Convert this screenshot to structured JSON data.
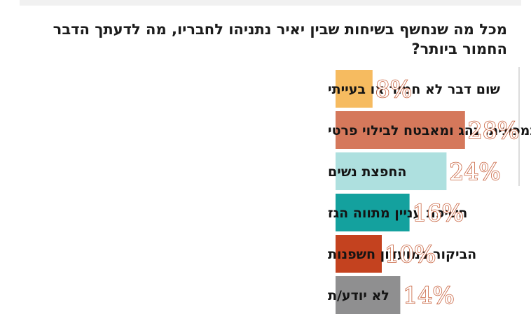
{
  "chart_data": {
    "type": "bar",
    "orientation": "horizontal",
    "title": "מכל מה שנחשף בשיחות שבין יאיר נתניהו לחבריו, מה לדעתך הדבר החמור ביותר?",
    "categories": [
      "שום דבר לא חמור או בעייתי",
      "שימוש במכונית, נהג ומאבטח לבילוי פרטי",
      "החפצת נשים",
      "חשיפת עניין מתווה הגז",
      "הביקור במועדון חשפנות",
      "לא יודע/ת"
    ],
    "values": [
      8,
      28,
      24,
      16,
      10,
      14
    ],
    "value_labels": [
      "8%",
      "28%",
      "24%",
      "16%",
      "10%",
      "14%"
    ],
    "colors": [
      "#f6bb60",
      "#d5785b",
      "#aee0df",
      "#14a19e",
      "#c4421f",
      "#8f8f90"
    ],
    "label_outline_color": "#c8623e",
    "xlabel": "",
    "ylabel": "",
    "xlim": [
      0,
      28
    ],
    "grid": false,
    "legend": "none"
  }
}
